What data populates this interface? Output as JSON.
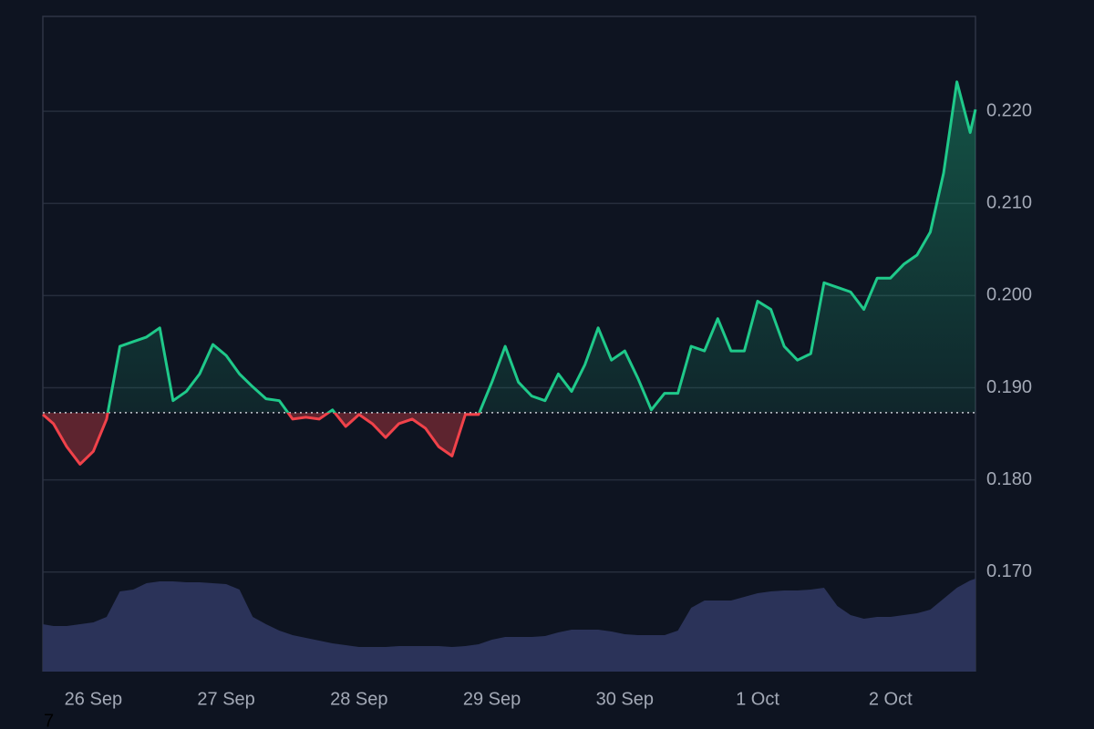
{
  "chart_data": {
    "type": "line",
    "x": [
      25.62,
      25.7,
      25.8,
      25.9,
      26.0,
      26.1,
      26.2,
      26.3,
      26.4,
      26.5,
      26.6,
      26.7,
      26.8,
      26.9,
      27.0,
      27.1,
      27.2,
      27.3,
      27.4,
      27.5,
      27.6,
      27.7,
      27.8,
      27.9,
      28.0,
      28.1,
      28.2,
      28.3,
      28.4,
      28.5,
      28.6,
      28.7,
      28.8,
      28.9,
      29.0,
      29.1,
      29.2,
      29.3,
      29.4,
      29.5,
      29.6,
      29.7,
      29.8,
      29.9,
      30.0,
      30.1,
      30.2,
      30.3,
      30.4,
      30.5,
      30.6,
      30.7,
      30.8,
      30.9,
      31.0,
      31.1,
      31.2,
      31.3,
      31.4,
      31.5,
      31.6,
      31.7,
      31.8,
      31.9,
      32.0,
      32.1,
      32.2,
      32.3,
      32.4,
      32.5,
      32.6,
      32.64
    ],
    "series": [
      {
        "name": "price",
        "color": "#1fc98a",
        "down_color": "#f0424a",
        "values": [
          0.1871,
          0.1861,
          0.1836,
          0.1817,
          0.1831,
          0.1866,
          0.1945,
          0.195,
          0.1955,
          0.1965,
          0.1886,
          0.1896,
          0.1915,
          0.1947,
          0.1935,
          0.1915,
          0.1901,
          0.1888,
          0.1886,
          0.1866,
          0.1868,
          0.1866,
          0.1876,
          0.1858,
          0.1871,
          0.1861,
          0.1846,
          0.1861,
          0.1866,
          0.1856,
          0.1836,
          0.1826,
          0.1871,
          0.1871,
          0.1906,
          0.1945,
          0.1906,
          0.1891,
          0.1886,
          0.1915,
          0.1896,
          0.1925,
          0.1965,
          0.193,
          0.194,
          0.191,
          0.1876,
          0.1894,
          0.1894,
          0.1945,
          0.194,
          0.1975,
          0.194,
          0.194,
          0.1994,
          0.1985,
          0.1945,
          0.193,
          0.1937,
          0.2014,
          0.2009,
          0.2004,
          0.1985,
          0.2019,
          0.2019,
          0.2034,
          0.2044,
          0.2069,
          0.2133,
          0.2232,
          0.2177,
          0.2202
        ]
      },
      {
        "name": "volume",
        "color": "#2b3359",
        "axis": "y2",
        "values": [
          52,
          50,
          50,
          52,
          54,
          60,
          88,
          90,
          97,
          99,
          99,
          98,
          98,
          97,
          96,
          90,
          60,
          52,
          45,
          40,
          37,
          34,
          31,
          29,
          27,
          27,
          27,
          28,
          28,
          28,
          28,
          27,
          28,
          30,
          35,
          38,
          38,
          38,
          39,
          43,
          46,
          46,
          46,
          44,
          41,
          40,
          40,
          40,
          45,
          70,
          78,
          78,
          78,
          82,
          86,
          88,
          89,
          89,
          90,
          92,
          72,
          62,
          58,
          60,
          60,
          62,
          64,
          68,
          80,
          92,
          100,
          102
        ]
      }
    ],
    "baseline": 0.1873,
    "xlim": [
      25.62,
      32.64
    ],
    "xticks": [
      {
        "value": 26,
        "label": "26 Sep"
      },
      {
        "value": 27,
        "label": "27 Sep"
      },
      {
        "value": 28,
        "label": "28 Sep"
      },
      {
        "value": 29,
        "label": "29 Sep"
      },
      {
        "value": 30,
        "label": "30 Sep"
      },
      {
        "value": 31,
        "label": "1 Oct"
      },
      {
        "value": 32,
        "label": "2 Oct"
      }
    ],
    "ylim": [
      0.1592,
      0.2303
    ],
    "yticks": [
      {
        "value": 0.17,
        "label": "0.170"
      },
      {
        "value": 0.18,
        "label": "0.180"
      },
      {
        "value": 0.19,
        "label": "0.190"
      },
      {
        "value": 0.2,
        "label": "0.200"
      },
      {
        "value": 0.21,
        "label": "0.210"
      },
      {
        "value": 0.22,
        "label": "0.220"
      }
    ],
    "y2lim": [
      0,
      719
    ],
    "grid": true,
    "corner_label": "7"
  }
}
